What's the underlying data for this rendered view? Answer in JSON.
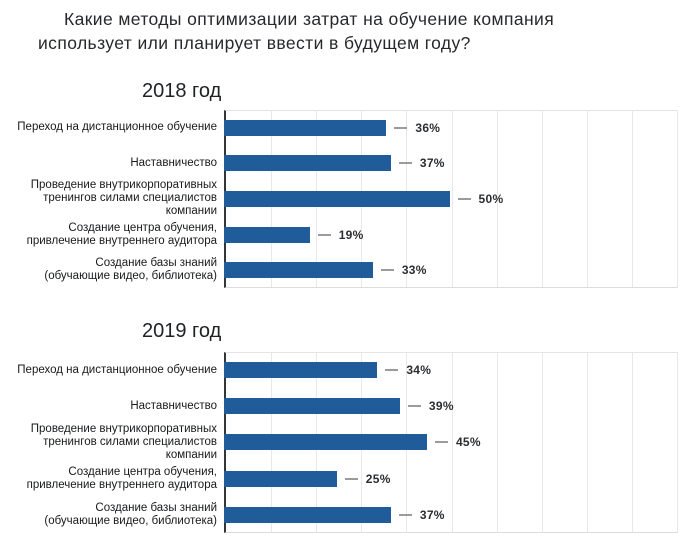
{
  "title": "Какие методы оптимизации затрат на обучение компания\nиспользует или планирует ввести в будущем году?",
  "colors": {
    "bar_fill": "#205C9A",
    "axis_line": "#333638",
    "gridline": "#e8e8e8",
    "leader_dash": "#9b9b9b",
    "label_text": "#17191b",
    "title_text": "#26282b"
  },
  "chart_data": [
    {
      "type": "bar",
      "orientation": "horizontal",
      "subtitle": "2018 год",
      "categories": [
        "Переход на дистанционное обучение",
        "Наставничество",
        "Проведение внутрикорпоративных\nтренингов силами специалистов\nкомпании",
        "Создание центра обучения,\nпривлечение внутреннего аудитора",
        "Создание базы знаний\n(обучающие видео, библиотека)"
      ],
      "values": [
        36,
        37,
        50,
        19,
        33
      ],
      "data_labels": [
        "36%",
        "37%",
        "50%",
        "19%",
        "33%"
      ],
      "unit": "%",
      "xlim": [
        0,
        100
      ],
      "gridline_step": 10,
      "grid": true,
      "legend": "none",
      "xlabel": "",
      "ylabel": ""
    },
    {
      "type": "bar",
      "orientation": "horizontal",
      "subtitle": "2019 год",
      "categories": [
        "Переход на дистанционное обучение",
        "Наставничество",
        "Проведение внутрикорпоративных\nтренингов силами специалистов\nкомпании",
        "Создание центра обучения,\nпривлечение внутреннего аудитора",
        "Создание базы знаний\n(обучающие видео, библиотека)"
      ],
      "values": [
        34,
        39,
        45,
        25,
        37
      ],
      "data_labels": [
        "34%",
        "39%",
        "45%",
        "25%",
        "37%"
      ],
      "unit": "%",
      "xlim": [
        0,
        100
      ],
      "gridline_step": 10,
      "grid": true,
      "legend": "none",
      "xlabel": "",
      "ylabel": ""
    }
  ]
}
